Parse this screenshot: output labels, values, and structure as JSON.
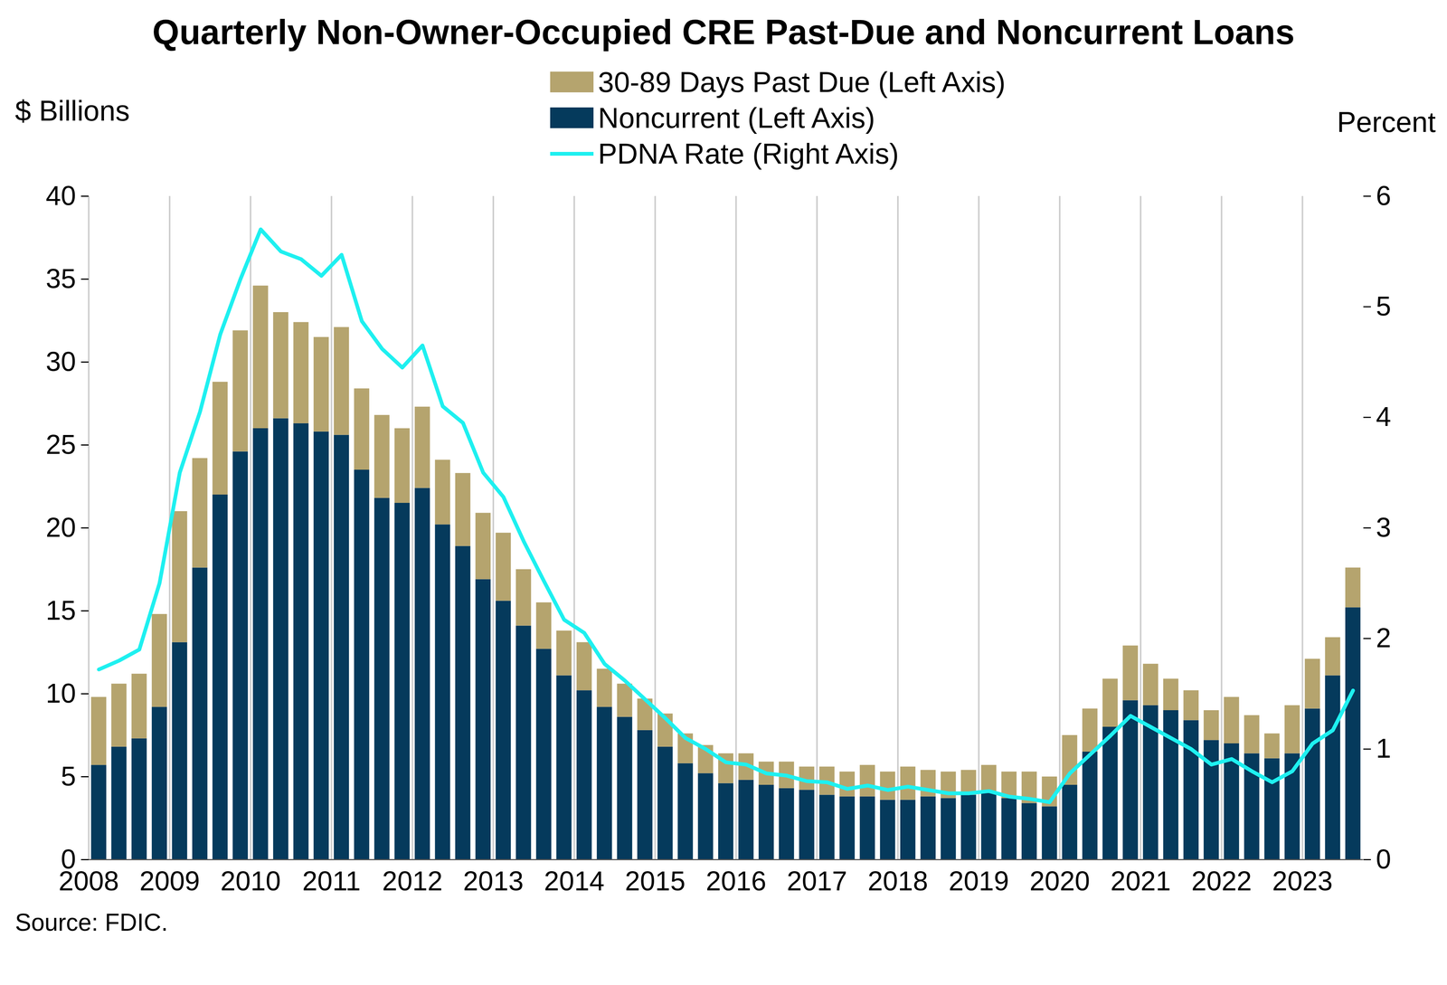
{
  "chart_data": {
    "type": "bar",
    "title": "Quarterly Non-Owner-Occupied CRE Past-Due and Noncurrent Loans",
    "ylabel": "$ Billions",
    "y2label": "Percent",
    "caption": "Source: FDIC.",
    "stacked": true,
    "grid": true,
    "legend": "top",
    "categories": [
      "2008",
      null,
      null,
      null,
      "2009",
      null,
      null,
      null,
      "2010",
      null,
      null,
      null,
      "2011",
      null,
      null,
      null,
      "2012",
      null,
      null,
      null,
      "2013",
      null,
      null,
      null,
      "2014",
      null,
      null,
      null,
      "2015",
      null,
      null,
      null,
      "2016",
      null,
      null,
      null,
      "2017",
      null,
      null,
      null,
      "2018",
      null,
      null,
      null,
      "2019",
      null,
      null,
      null,
      "2020",
      null,
      null,
      null,
      "2021",
      null,
      null,
      null,
      "2022",
      null,
      null,
      null,
      "2023",
      null,
      null
    ],
    "series": [
      {
        "name": "30-89 Days Past Due (Left Axis)",
        "color": "#b5a46e",
        "type": "bar",
        "values": [
          4.1,
          3.8,
          3.9,
          5.6,
          7.9,
          6.6,
          6.8,
          7.3,
          8.6,
          6.4,
          6.1,
          5.7,
          6.5,
          4.9,
          5.0,
          4.5,
          4.9,
          3.9,
          4.4,
          4.0,
          4.1,
          3.4,
          2.8,
          2.7,
          2.9,
          2.3,
          2.0,
          1.9,
          2.0,
          1.8,
          1.7,
          1.8,
          1.6,
          1.4,
          1.6,
          1.4,
          1.7,
          1.5,
          1.9,
          1.7,
          2.0,
          1.6,
          1.6,
          1.5,
          1.7,
          1.6,
          1.9,
          1.8,
          3.0,
          2.6,
          2.9,
          3.3,
          2.5,
          1.9,
          1.8,
          1.8,
          2.8,
          2.3,
          1.5,
          2.9,
          3.0,
          2.3,
          2.4
        ]
      },
      {
        "name": "Noncurrent (Left Axis)",
        "color": "#053a5c",
        "type": "bar",
        "values": [
          5.7,
          6.8,
          7.3,
          9.2,
          13.1,
          17.6,
          22.0,
          24.6,
          26.0,
          26.6,
          26.3,
          25.8,
          25.6,
          23.5,
          21.8,
          21.5,
          22.4,
          20.2,
          18.9,
          16.9,
          15.6,
          14.1,
          12.7,
          11.1,
          10.2,
          9.2,
          8.6,
          7.8,
          6.8,
          5.8,
          5.2,
          4.6,
          4.8,
          4.5,
          4.3,
          4.2,
          3.9,
          3.8,
          3.8,
          3.6,
          3.6,
          3.8,
          3.7,
          3.9,
          4.0,
          3.7,
          3.4,
          3.2,
          4.5,
          6.5,
          8.0,
          9.6,
          9.3,
          9.0,
          8.4,
          7.2,
          7.0,
          6.4,
          6.1,
          6.4,
          9.1,
          11.1,
          15.2
        ]
      },
      {
        "name": "PDNA Rate (Right Axis)",
        "color": "#1ef0f0",
        "type": "line",
        "axis": "y2",
        "values": [
          1.72,
          1.8,
          1.9,
          2.5,
          3.5,
          4.05,
          4.75,
          5.25,
          5.7,
          5.5,
          5.43,
          5.28,
          5.47,
          4.87,
          4.62,
          4.45,
          4.65,
          4.1,
          3.95,
          3.5,
          3.28,
          2.88,
          2.52,
          2.17,
          2.05,
          1.77,
          1.62,
          1.45,
          1.28,
          1.1,
          1.0,
          0.88,
          0.86,
          0.78,
          0.76,
          0.71,
          0.7,
          0.64,
          0.67,
          0.63,
          0.66,
          0.63,
          0.6,
          0.6,
          0.62,
          0.57,
          0.55,
          0.52,
          0.78,
          0.95,
          1.12,
          1.3,
          1.2,
          1.1,
          1.0,
          0.86,
          0.91,
          0.8,
          0.7,
          0.8,
          1.05,
          1.17,
          1.53
        ]
      }
    ],
    "ylim": [
      0,
      40
    ],
    "yticks": [
      0,
      5,
      10,
      15,
      20,
      25,
      30,
      35,
      40
    ],
    "y2lim": [
      0,
      6
    ],
    "y2ticks": [
      0,
      1,
      2,
      3,
      4,
      5,
      6
    ]
  }
}
